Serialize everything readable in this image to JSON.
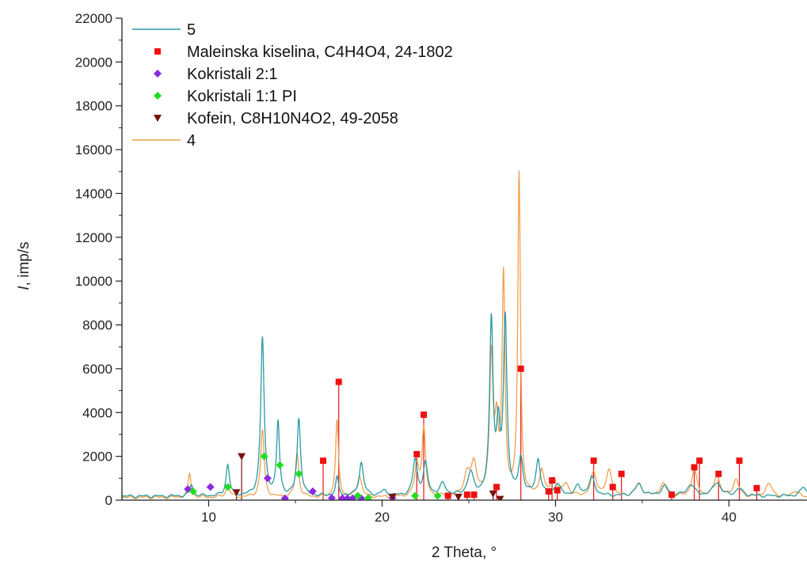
{
  "chart_data": {
    "type": "line",
    "xlabel": "2 Theta, °",
    "ylabel_italic": "I",
    "ylabel_rest": ", imp/s",
    "xlim": [
      5,
      44.5
    ],
    "ylim": [
      0,
      22000
    ],
    "x_ticks": [
      10,
      20,
      30,
      40
    ],
    "y_ticks": [
      0,
      2000,
      4000,
      6000,
      8000,
      10000,
      12000,
      14000,
      16000,
      18000,
      20000,
      22000
    ],
    "grid": false,
    "legend_position": "top-left",
    "baseline_5": 180,
    "baseline_4": 120,
    "series": [
      {
        "name": "5",
        "kind": "line",
        "color": "#2a9aa3",
        "peaks": [
          [
            9.0,
            700,
            0.12
          ],
          [
            11.1,
            1600,
            0.12
          ],
          [
            13.1,
            7400,
            0.12
          ],
          [
            14.0,
            3500,
            0.1
          ],
          [
            15.2,
            3700,
            0.12
          ],
          [
            17.4,
            1000,
            0.1
          ],
          [
            18.8,
            1700,
            0.15
          ],
          [
            20.1,
            400,
            0.2
          ],
          [
            21.9,
            1800,
            0.15
          ],
          [
            22.5,
            1600,
            0.15
          ],
          [
            23.5,
            700,
            0.2
          ],
          [
            25.1,
            1200,
            0.2
          ],
          [
            26.3,
            8100,
            0.12
          ],
          [
            26.7,
            2900,
            0.12
          ],
          [
            27.1,
            8100,
            0.12
          ],
          [
            28.0,
            1800,
            0.15
          ],
          [
            29.0,
            1800,
            0.15
          ],
          [
            30.1,
            700,
            0.2
          ],
          [
            31.3,
            600,
            0.2
          ],
          [
            32.1,
            1000,
            0.2
          ],
          [
            34.8,
            700,
            0.25
          ],
          [
            36.3,
            600,
            0.25
          ],
          [
            37.8,
            700,
            0.25
          ],
          [
            39.3,
            800,
            0.25
          ],
          [
            40.6,
            500,
            0.25
          ],
          [
            44.3,
            600,
            0.2
          ]
        ]
      },
      {
        "name": "4",
        "kind": "line",
        "color": "#f0a050",
        "peaks": [
          [
            8.9,
            1200,
            0.1
          ],
          [
            11.1,
            600,
            0.15
          ],
          [
            13.1,
            3200,
            0.12
          ],
          [
            15.1,
            2100,
            0.12
          ],
          [
            17.4,
            3600,
            0.1
          ],
          [
            18.7,
            1100,
            0.15
          ],
          [
            22.0,
            1500,
            0.15
          ],
          [
            22.4,
            3200,
            0.12
          ],
          [
            24.9,
            1100,
            0.2
          ],
          [
            25.3,
            1500,
            0.2
          ],
          [
            26.3,
            6400,
            0.12
          ],
          [
            26.6,
            2900,
            0.12
          ],
          [
            27.0,
            10000,
            0.1
          ],
          [
            27.9,
            14800,
            0.09
          ],
          [
            29.2,
            1300,
            0.15
          ],
          [
            29.9,
            900,
            0.2
          ],
          [
            30.6,
            700,
            0.2
          ],
          [
            32.2,
            1200,
            0.2
          ],
          [
            33.1,
            1300,
            0.2
          ],
          [
            34.8,
            700,
            0.25
          ],
          [
            36.2,
            700,
            0.25
          ],
          [
            38.0,
            1300,
            0.2
          ],
          [
            39.3,
            1100,
            0.2
          ],
          [
            40.4,
            900,
            0.2
          ],
          [
            42.3,
            700,
            0.25
          ],
          [
            43.8,
            400,
            0.25
          ]
        ]
      },
      {
        "name": "Maleinska kiselina, C4H4O4, 24-1802",
        "kind": "stick",
        "marker": "square",
        "color": "#ee1111",
        "x": [
          16.6,
          17.5,
          22.0,
          22.4,
          23.8,
          24.9,
          25.3,
          26.6,
          28.0,
          29.6,
          29.8,
          30.1,
          32.2,
          33.3,
          33.8,
          36.7,
          38.0,
          38.3,
          39.4,
          40.6,
          41.6
        ],
        "y": [
          1800,
          5400,
          2100,
          3900,
          200,
          250,
          250,
          600,
          6000,
          400,
          900,
          450,
          1800,
          600,
          1200,
          250,
          1500,
          1800,
          1200,
          1800,
          550
        ]
      },
      {
        "name": "Kokristali 2:1",
        "kind": "marker",
        "marker": "diamond",
        "color": "#8a2be2",
        "x": [
          8.8,
          10.1,
          13.4,
          14.4,
          16.0,
          17.1,
          17.7,
          18.0,
          18.3,
          18.8,
          20.6
        ],
        "y": [
          500,
          600,
          1000,
          80,
          400,
          100,
          80,
          80,
          80,
          80,
          100
        ]
      },
      {
        "name": "Kokristali 1:1 PI",
        "kind": "marker",
        "marker": "diamond",
        "color": "#22dd22",
        "x": [
          9.1,
          11.1,
          13.2,
          14.1,
          15.2,
          18.6,
          19.2,
          21.9,
          23.2
        ],
        "y": [
          400,
          600,
          2000,
          1600,
          1200,
          200,
          100,
          200,
          200
        ]
      },
      {
        "name": "Kofein, C8H10N4O2, 49-2058",
        "kind": "stick",
        "marker": "triangle-down",
        "color": "#7a1010",
        "x": [
          11.6,
          11.9,
          20.6,
          24.4,
          26.4,
          26.8
        ],
        "y": [
          350,
          2000,
          150,
          150,
          300,
          50
        ]
      }
    ]
  }
}
